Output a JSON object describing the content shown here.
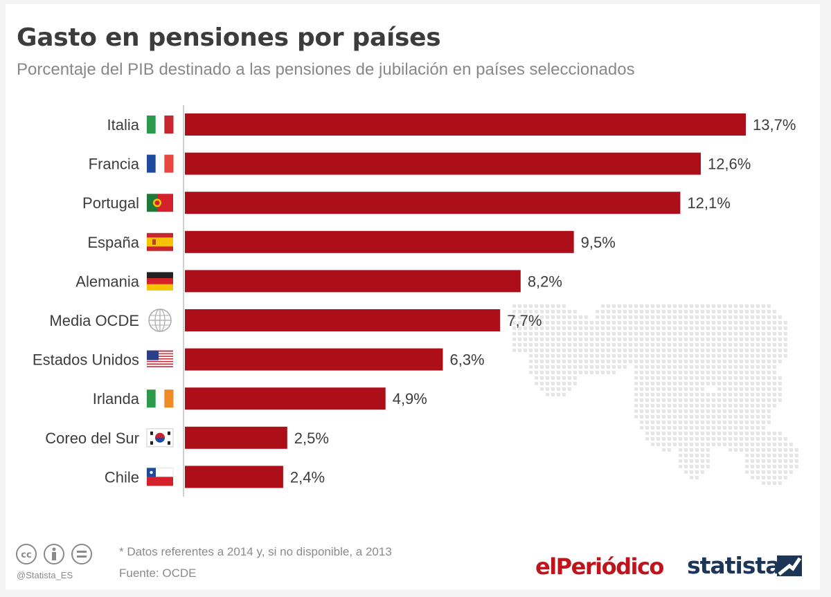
{
  "title": "Gasto en pensiones por países",
  "subtitle": "Porcentaje del PIB destinado a las pensiones de jubilación en países seleccionados",
  "footnote": "* Datos referentes a 2014 y, si no disponible, a 2013",
  "source": "Fuente: OCDE",
  "handle": "@Statista_ES",
  "logos": {
    "periodico": "elPeriódico",
    "statista": "statista"
  },
  "colors": {
    "bar": "#ad0f19",
    "text": "#3c3c3c",
    "muted": "#8a8a8a"
  },
  "chart_data": {
    "type": "bar",
    "orientation": "horizontal",
    "categories": [
      "Italia",
      "Francia",
      "Portugal",
      "España",
      "Alemania",
      "Media OCDE",
      "Estados Unidos",
      "Irlanda",
      "Coreo del Sur",
      "Chile"
    ],
    "values": [
      13.7,
      12.6,
      12.1,
      9.5,
      8.2,
      7.7,
      6.3,
      4.9,
      2.5,
      2.4
    ],
    "value_labels": [
      "13,7%",
      "12,6%",
      "12,1%",
      "9,5%",
      "8,2%",
      "7,7%",
      "6,3%",
      "4,9%",
      "2,5%",
      "2,4%"
    ],
    "flags": [
      "italy-flag",
      "france-flag",
      "portugal-flag",
      "spain-flag",
      "germany-flag",
      "globe",
      "usa-flag",
      "ireland-flag",
      "south-korea-flag",
      "chile-flag"
    ],
    "xlim": [
      0,
      13.7
    ],
    "unit": "%",
    "grid": false,
    "legend": "none"
  }
}
